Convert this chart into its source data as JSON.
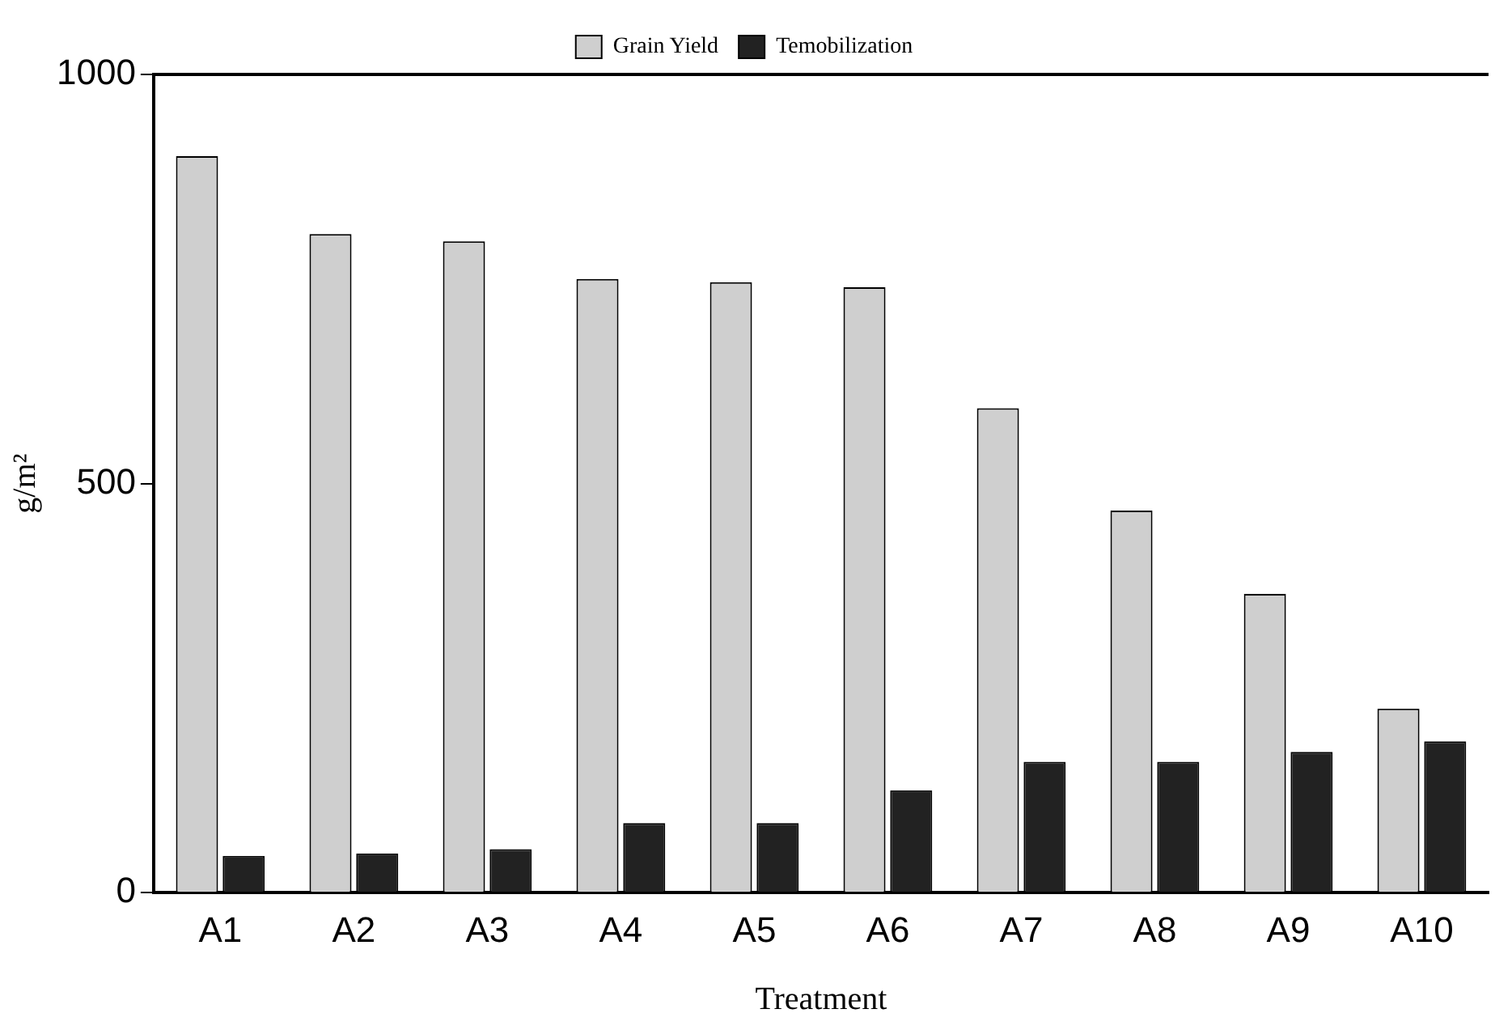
{
  "chart_data": {
    "type": "bar",
    "xlabel": "Treatment",
    "ylabel": "g/m²",
    "categories": [
      "A1",
      "A2",
      "A3",
      "A4",
      "A5",
      "A6",
      "A7",
      "A8",
      "A9",
      "A10"
    ],
    "series": [
      {
        "name": "Grain Yield",
        "color": "#cfcfcf",
        "values": [
          900,
          805,
          796,
          750,
          746,
          740,
          592,
          467,
          365,
          225
        ]
      },
      {
        "name": "Temobilization",
        "color": "#222222",
        "values": [
          45,
          48,
          53,
          85,
          85,
          125,
          160,
          160,
          172,
          185
        ]
      }
    ],
    "ylim": [
      0,
      1000
    ],
    "yticks": [
      0,
      500,
      1000
    ],
    "grid": false,
    "legend": "top"
  }
}
